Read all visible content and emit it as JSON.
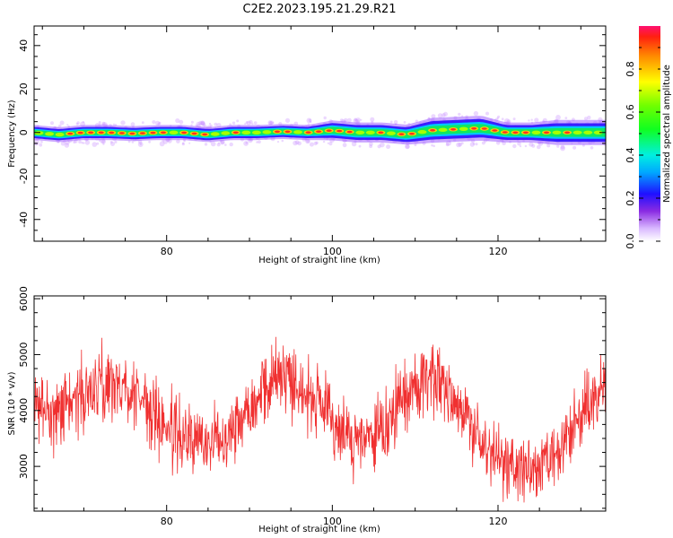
{
  "figure": {
    "title": "C2E2.2023.195.21.29.R21"
  },
  "chart_data": [
    {
      "type": "heatmap",
      "title": "C2E2.2023.195.21.29.R21",
      "xlabel": "Height of straight line (km)",
      "ylabel": "Frequency (Hz)",
      "xlim": [
        64,
        133
      ],
      "ylim": [
        -50,
        49
      ],
      "xticks": [
        80,
        100,
        120
      ],
      "yticks": [
        40,
        20,
        0,
        -20,
        -40
      ],
      "ytick_labels": [
        "40",
        "20",
        "0",
        "-20",
        "-40"
      ],
      "colorbar": {
        "label": "Normalized spectral amplitude",
        "range": [
          0.0,
          1.0
        ],
        "ticks": [
          0.0,
          0.2,
          0.4,
          0.6,
          0.8
        ],
        "tick_labels": [
          "0.0",
          "0.2",
          "0.4",
          "0.6",
          "0.8"
        ]
      },
      "ridge": {
        "x": [
          64,
          67,
          70,
          73,
          76,
          79,
          82,
          85,
          88,
          91,
          94,
          97,
          100,
          103,
          106,
          109,
          112,
          115,
          118,
          121,
          124,
          127,
          130,
          133
        ],
        "y": [
          0,
          -1,
          0,
          0,
          -0.5,
          0,
          0,
          -1,
          0,
          0,
          0.5,
          0,
          1,
          0,
          0,
          -1,
          1,
          1.5,
          2,
          0,
          0,
          0,
          0,
          0
        ],
        "spread": [
          3,
          3,
          3,
          3,
          3,
          3,
          3,
          3,
          3,
          3,
          3,
          3,
          4,
          4,
          4,
          4,
          5,
          5,
          5,
          4,
          4,
          5,
          5,
          5
        ]
      }
    },
    {
      "type": "line",
      "xlabel": "Height of straight line (km)",
      "ylabel": "SNR (10 * v/v)",
      "xlim": [
        64,
        133
      ],
      "ylim": [
        2200,
        6050
      ],
      "xticks": [
        80,
        100,
        120
      ],
      "yticks": [
        3000,
        4000,
        5000,
        6000
      ],
      "ytick_labels": [
        "3000",
        "4000",
        "5000",
        "6000"
      ],
      "color": "#f03030",
      "series": [
        {
          "x": [
            64,
            67,
            70,
            73,
            76,
            79,
            82,
            85,
            88,
            91,
            94,
            97,
            100,
            103,
            106,
            109,
            112,
            115,
            118,
            121,
            124,
            127,
            130,
            133
          ],
          "values": [
            4000,
            4050,
            4300,
            4500,
            4350,
            3800,
            3500,
            3400,
            3700,
            4300,
            4700,
            4300,
            3800,
            3400,
            3600,
            4300,
            4700,
            4200,
            3400,
            3000,
            2900,
            3100,
            3900,
            4500
          ]
        }
      ]
    }
  ]
}
